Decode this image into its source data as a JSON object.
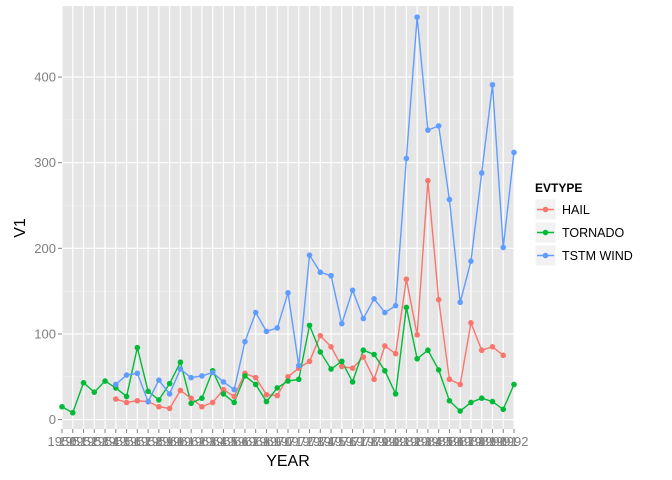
{
  "chart_data": {
    "type": "line",
    "title": "",
    "xlabel": "YEAR",
    "ylabel": "V1",
    "xlim": [
      1950,
      1992
    ],
    "ylim": [
      -11,
      483
    ],
    "x_ticks": [
      1950,
      1951,
      1952,
      1953,
      1954,
      1955,
      1956,
      1957,
      1958,
      1959,
      1960,
      1961,
      1962,
      1963,
      1964,
      1965,
      1966,
      1967,
      1968,
      1969,
      1970,
      1971,
      1972,
      1973,
      1974,
      1975,
      1976,
      1977,
      1978,
      1979,
      1980,
      1981,
      1982,
      1983,
      1984,
      1985,
      1986,
      1987,
      1988,
      1989,
      1990,
      1991,
      1992
    ],
    "y_ticks": [
      0,
      100,
      200,
      300,
      400
    ],
    "grid": true,
    "legend": {
      "title": "EVTYPE",
      "position": "right"
    },
    "series": [
      {
        "name": "HAIL",
        "color": "#F8766D",
        "points": [
          [
            1955,
            24
          ],
          [
            1956,
            20
          ],
          [
            1957,
            22
          ],
          [
            1958,
            21
          ],
          [
            1959,
            15
          ],
          [
            1960,
            13
          ],
          [
            1961,
            34
          ],
          [
            1962,
            25
          ],
          [
            1963,
            15
          ],
          [
            1964,
            20
          ],
          [
            1965,
            35
          ],
          [
            1966,
            27
          ],
          [
            1967,
            54
          ],
          [
            1968,
            49
          ],
          [
            1969,
            29
          ],
          [
            1970,
            28
          ],
          [
            1971,
            50
          ],
          [
            1972,
            60
          ],
          [
            1973,
            68
          ],
          [
            1974,
            98
          ],
          [
            1975,
            85
          ],
          [
            1976,
            62
          ],
          [
            1977,
            60
          ],
          [
            1978,
            73
          ],
          [
            1979,
            47
          ],
          [
            1980,
            86
          ],
          [
            1981,
            77
          ],
          [
            1982,
            164
          ],
          [
            1983,
            99
          ],
          [
            1984,
            279
          ],
          [
            1985,
            140
          ],
          [
            1986,
            47
          ],
          [
            1987,
            41
          ],
          [
            1988,
            113
          ],
          [
            1989,
            81
          ],
          [
            1990,
            85
          ],
          [
            1991,
            75
          ]
        ]
      },
      {
        "name": "TORNADO",
        "color": "#00BA38",
        "points": [
          [
            1950,
            15
          ],
          [
            1951,
            8
          ],
          [
            1952,
            43
          ],
          [
            1953,
            32
          ],
          [
            1954,
            45
          ],
          [
            1955,
            37
          ],
          [
            1956,
            27
          ],
          [
            1957,
            84
          ],
          [
            1958,
            33
          ],
          [
            1959,
            23
          ],
          [
            1960,
            42
          ],
          [
            1961,
            67
          ],
          [
            1962,
            19
          ],
          [
            1963,
            25
          ],
          [
            1964,
            57
          ],
          [
            1965,
            30
          ],
          [
            1966,
            20
          ],
          [
            1967,
            51
          ],
          [
            1968,
            41
          ],
          [
            1969,
            21
          ],
          [
            1970,
            37
          ],
          [
            1971,
            45
          ],
          [
            1972,
            47
          ],
          [
            1973,
            110
          ],
          [
            1974,
            79
          ],
          [
            1975,
            59
          ],
          [
            1976,
            68
          ],
          [
            1977,
            44
          ],
          [
            1978,
            81
          ],
          [
            1979,
            76
          ],
          [
            1980,
            57
          ],
          [
            1981,
            30
          ],
          [
            1982,
            131
          ],
          [
            1983,
            71
          ],
          [
            1984,
            81
          ],
          [
            1985,
            58
          ],
          [
            1986,
            22
          ],
          [
            1987,
            10
          ],
          [
            1988,
            20
          ],
          [
            1989,
            25
          ],
          [
            1990,
            21
          ],
          [
            1991,
            12
          ],
          [
            1992,
            41
          ]
        ]
      },
      {
        "name": "TSTM WIND",
        "color": "#619CFF",
        "points": [
          [
            1955,
            41
          ],
          [
            1956,
            52
          ],
          [
            1957,
            54
          ],
          [
            1958,
            21
          ],
          [
            1959,
            46
          ],
          [
            1960,
            30
          ],
          [
            1961,
            59
          ],
          [
            1962,
            49
          ],
          [
            1963,
            51
          ],
          [
            1964,
            55
          ],
          [
            1965,
            44
          ],
          [
            1966,
            35
          ],
          [
            1967,
            91
          ],
          [
            1968,
            125
          ],
          [
            1969,
            103
          ],
          [
            1970,
            107
          ],
          [
            1971,
            148
          ],
          [
            1972,
            63
          ],
          [
            1973,
            192
          ],
          [
            1974,
            172
          ],
          [
            1975,
            168
          ],
          [
            1976,
            112
          ],
          [
            1977,
            151
          ],
          [
            1978,
            118
          ],
          [
            1979,
            141
          ],
          [
            1980,
            125
          ],
          [
            1981,
            133
          ],
          [
            1982,
            305
          ],
          [
            1983,
            470
          ],
          [
            1984,
            338
          ],
          [
            1985,
            343
          ],
          [
            1986,
            257
          ],
          [
            1987,
            137
          ],
          [
            1988,
            185
          ],
          [
            1989,
            288
          ],
          [
            1990,
            391
          ],
          [
            1991,
            201
          ],
          [
            1992,
            312
          ]
        ]
      }
    ]
  }
}
